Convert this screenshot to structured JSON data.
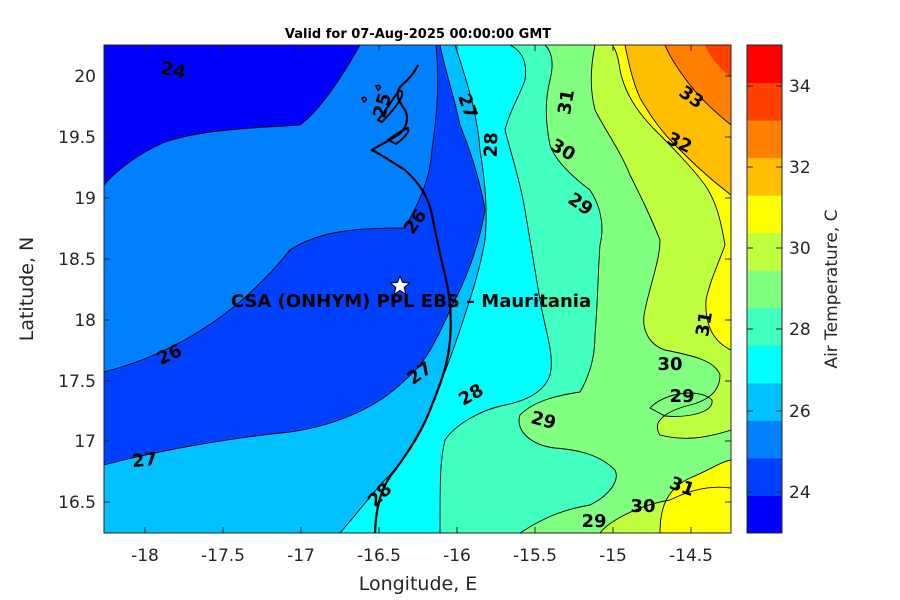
{
  "title": "Valid for 07-Aug-2025 00:00:00 GMT",
  "site_label": "CSA (ONHYM) PPL EBS  – Mauritania",
  "xlabel": "Longitude, E",
  "ylabel": "Latitude, N",
  "colorbar_label": "Air Temperature, C",
  "x_ticks": [
    "-18",
    "-17.5",
    "-17",
    "-16.5",
    "-16",
    "-15.5",
    "-15",
    "-14.5"
  ],
  "y_ticks": [
    "20",
    "19.5",
    "19",
    "18.5",
    "18",
    "17.5",
    "17",
    "16.5"
  ],
  "colorbar_ticks": [
    "24",
    "26",
    "28",
    "30",
    "32",
    "34"
  ],
  "contour_labels": [
    "24",
    "25",
    "26",
    "26",
    "27",
    "27",
    "27",
    "28",
    "28",
    "28",
    "29",
    "29",
    "29",
    "29",
    "30",
    "30",
    "30",
    "31",
    "31",
    "31",
    "32",
    "33"
  ],
  "colorbar_colors": [
    "#0000ff",
    "#0040ff",
    "#0080ff",
    "#00c0ff",
    "#00ffff",
    "#40ffbf",
    "#80ff80",
    "#bfff40",
    "#ffff00",
    "#ffbf00",
    "#ff8000",
    "#ff4000",
    "#ff0000"
  ],
  "chart_data": {
    "type": "map",
    "variable": "Air Temperature, C",
    "xlim": [
      -18.25,
      -14.25
    ],
    "ylim": [
      16.25,
      20.25
    ],
    "clim": [
      23,
      35
    ],
    "contour_interval": 1,
    "site": {
      "lon": -16.35,
      "lat": 18.28
    }
  }
}
